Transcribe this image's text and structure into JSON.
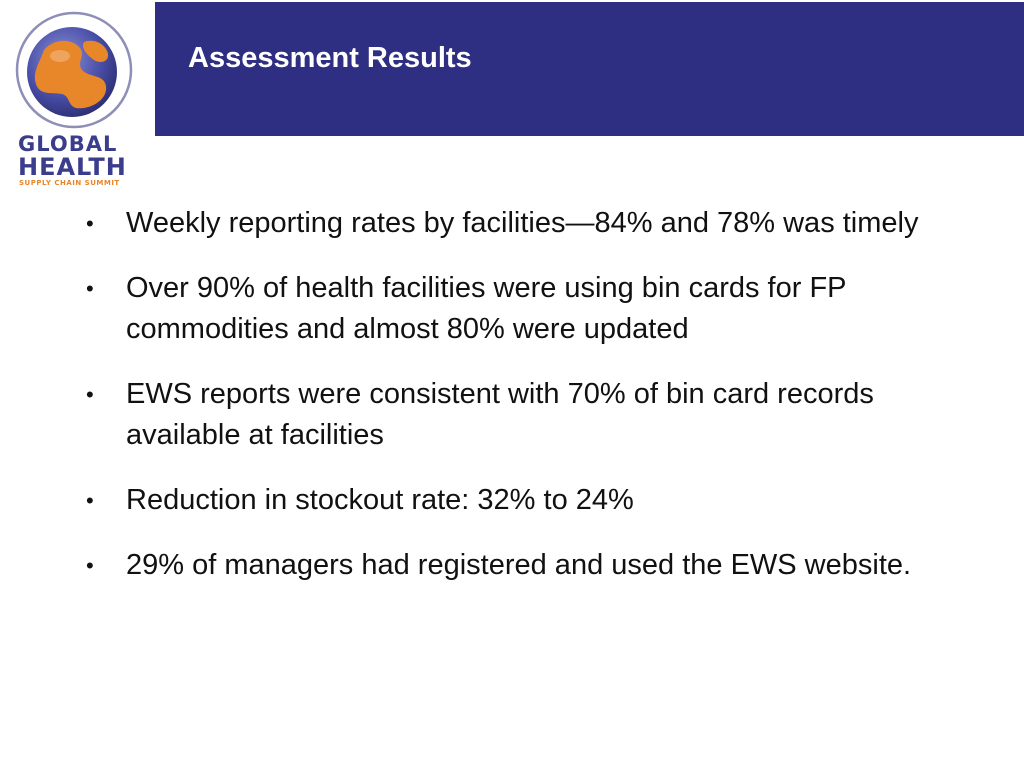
{
  "header": {
    "title": "Assessment Results"
  },
  "logo": {
    "line1": "GLOBAL",
    "line2": "HEALTH",
    "line3": "SUPPLY CHAIN SUMMIT"
  },
  "bullets": [
    {
      "text": "Weekly reporting rates by facilities—84% and 78% was timely"
    },
    {
      "text": "Over 90% of health facilities were using bin cards for FP commodities and almost 80% were updated"
    },
    {
      "text": "EWS reports were consistent with 70% of bin card records available at facilities"
    },
    {
      "text": "Reduction in stockout rate: 32% to 24%"
    },
    {
      "text": "29% of managers had registered and used the EWS website."
    }
  ],
  "bullet_glyph": "•",
  "colors": {
    "header_band": "#2e2f82",
    "title_text": "#ffffff",
    "body_text": "#111111",
    "logo_blue": "#3a3c8c",
    "logo_orange": "#e8862a"
  }
}
